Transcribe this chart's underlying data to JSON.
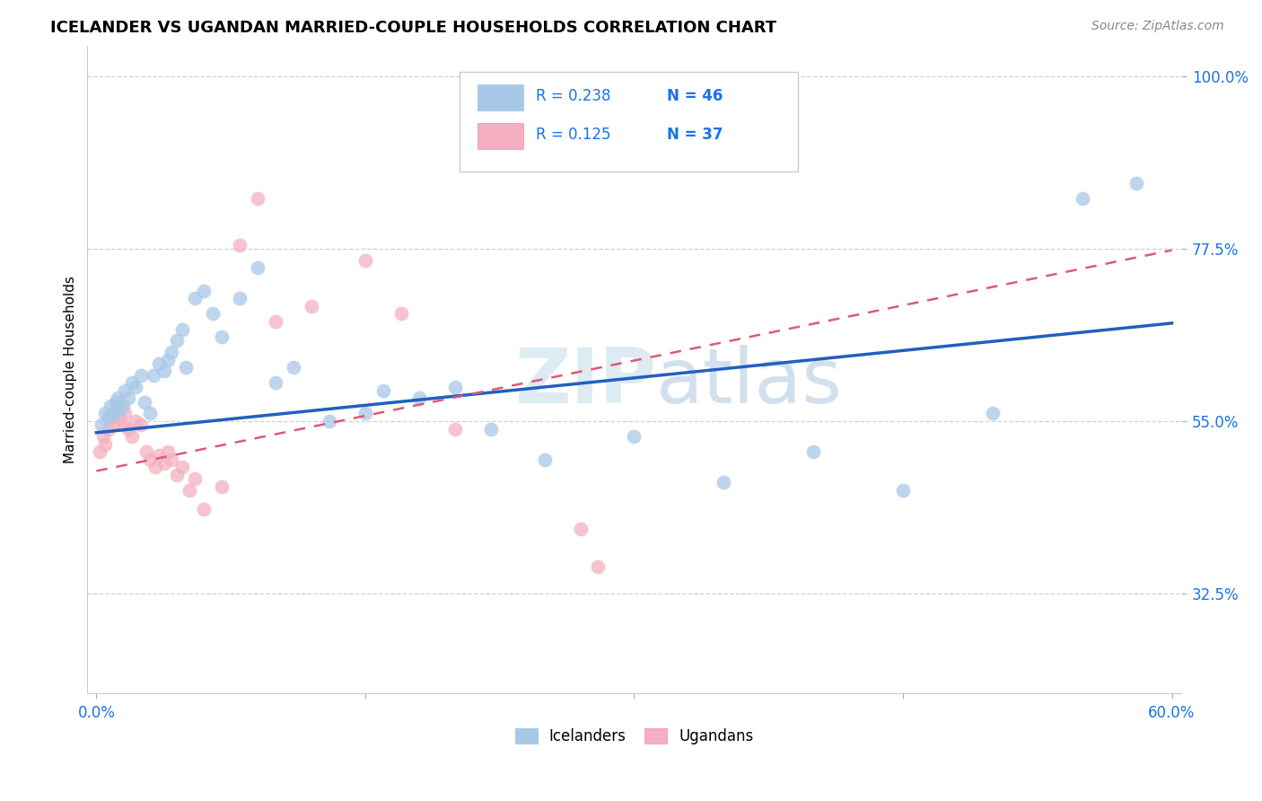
{
  "title": "ICELANDER VS UGANDAN MARRIED-COUPLE HOUSEHOLDS CORRELATION CHART",
  "source": "Source: ZipAtlas.com",
  "ylabel": "Married-couple Households",
  "xlim": [
    -0.005,
    0.605
  ],
  "ylim": [
    0.195,
    1.04
  ],
  "xticks": [
    0.0,
    0.15,
    0.3,
    0.45,
    0.6
  ],
  "xticklabels": [
    "0.0%",
    "",
    "",
    "",
    "60.0%"
  ],
  "ytick_positions": [
    0.325,
    0.55,
    0.775,
    1.0
  ],
  "ytick_labels": [
    "32.5%",
    "55.0%",
    "77.5%",
    "100.0%"
  ],
  "icelander_color": "#a8c8e8",
  "ugandan_color": "#f4b0c0",
  "icelander_line_color": "#2060c0",
  "ugandan_line_color": "#e05878",
  "R_icelander": 0.238,
  "N_icelander": 46,
  "R_ugandan": 0.125,
  "N_ugandan": 37,
  "icelander_x": [
    0.003,
    0.005,
    0.007,
    0.008,
    0.01,
    0.011,
    0.012,
    0.013,
    0.015,
    0.016,
    0.018,
    0.02,
    0.022,
    0.025,
    0.027,
    0.03,
    0.032,
    0.035,
    0.038,
    0.04,
    0.042,
    0.045,
    0.048,
    0.05,
    0.055,
    0.06,
    0.065,
    0.07,
    0.08,
    0.09,
    0.1,
    0.11,
    0.13,
    0.15,
    0.16,
    0.18,
    0.2,
    0.22,
    0.25,
    0.3,
    0.35,
    0.4,
    0.45,
    0.5,
    0.55,
    0.58
  ],
  "icelander_y": [
    0.545,
    0.56,
    0.555,
    0.57,
    0.56,
    0.575,
    0.58,
    0.565,
    0.57,
    0.59,
    0.58,
    0.6,
    0.595,
    0.61,
    0.575,
    0.56,
    0.61,
    0.625,
    0.615,
    0.63,
    0.64,
    0.655,
    0.67,
    0.62,
    0.71,
    0.72,
    0.69,
    0.66,
    0.71,
    0.75,
    0.6,
    0.62,
    0.55,
    0.56,
    0.59,
    0.58,
    0.595,
    0.54,
    0.5,
    0.53,
    0.47,
    0.51,
    0.46,
    0.56,
    0.84,
    0.86
  ],
  "ugandan_x": [
    0.002,
    0.004,
    0.005,
    0.007,
    0.008,
    0.01,
    0.011,
    0.012,
    0.013,
    0.015,
    0.016,
    0.018,
    0.02,
    0.022,
    0.025,
    0.028,
    0.03,
    0.033,
    0.035,
    0.038,
    0.04,
    0.042,
    0.045,
    0.048,
    0.052,
    0.055,
    0.06,
    0.07,
    0.08,
    0.09,
    0.1,
    0.12,
    0.15,
    0.17,
    0.2,
    0.27,
    0.28
  ],
  "ugandan_y": [
    0.51,
    0.53,
    0.52,
    0.54,
    0.555,
    0.545,
    0.56,
    0.57,
    0.555,
    0.545,
    0.56,
    0.54,
    0.53,
    0.55,
    0.545,
    0.51,
    0.5,
    0.49,
    0.505,
    0.495,
    0.51,
    0.5,
    0.48,
    0.49,
    0.46,
    0.475,
    0.435,
    0.465,
    0.78,
    0.84,
    0.68,
    0.7,
    0.76,
    0.69,
    0.54,
    0.41,
    0.36
  ],
  "grid_color": "#cccccc",
  "background_color": "#ffffff",
  "watermark_zip": "ZIP",
  "watermark_atlas": "atlas",
  "legend_color": "#1a73e8"
}
